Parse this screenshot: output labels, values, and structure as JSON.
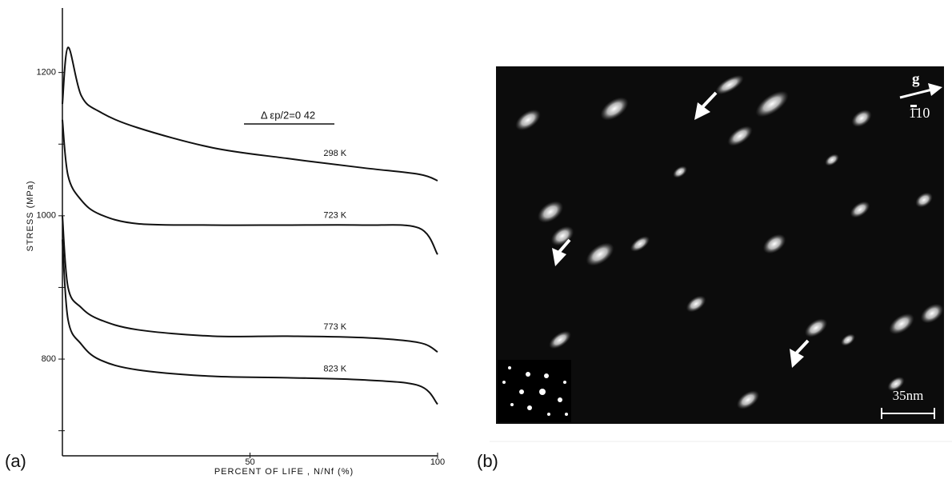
{
  "chart_data": {
    "type": "line",
    "ylabel": "STRESS   (MPa)",
    "xlabel": "PERCENT  OF  LIFE ,  N/Nf   (%)",
    "annotation": "Δ εp/2=0 42",
    "x": [
      0,
      1.5,
      5,
      10,
      20,
      40,
      60,
      80,
      95,
      100
    ],
    "xlim": [
      0,
      100
    ],
    "xticks": [
      50,
      100
    ],
    "ylim": [
      665,
      1290
    ],
    "yticks": [
      800,
      1000,
      1200
    ],
    "minor_yticks": [
      700,
      900,
      1100
    ],
    "color": "#111111",
    "series": [
      {
        "name": "298 K",
        "values": [
          1156,
          1235,
          1168,
          1145,
          1123,
          1095,
          1080,
          1067,
          1058,
          1049
        ]
      },
      {
        "name": "723 K",
        "values": [
          1134,
          1056,
          1022,
          1002,
          989,
          987,
          987,
          987,
          983,
          946
        ]
      },
      {
        "name": "773 K",
        "values": [
          1000,
          900,
          872,
          855,
          841,
          832,
          832,
          830,
          823,
          810
        ]
      },
      {
        "name": "823 K",
        "values": [
          967,
          855,
          821,
          799,
          785,
          776,
          774,
          771,
          763,
          737
        ]
      }
    ]
  },
  "panels": {
    "a": "(a)",
    "b": "(b)"
  },
  "micrograph": {
    "vector": "g",
    "direction": "1̄10",
    "scale_bar": "35nm"
  }
}
